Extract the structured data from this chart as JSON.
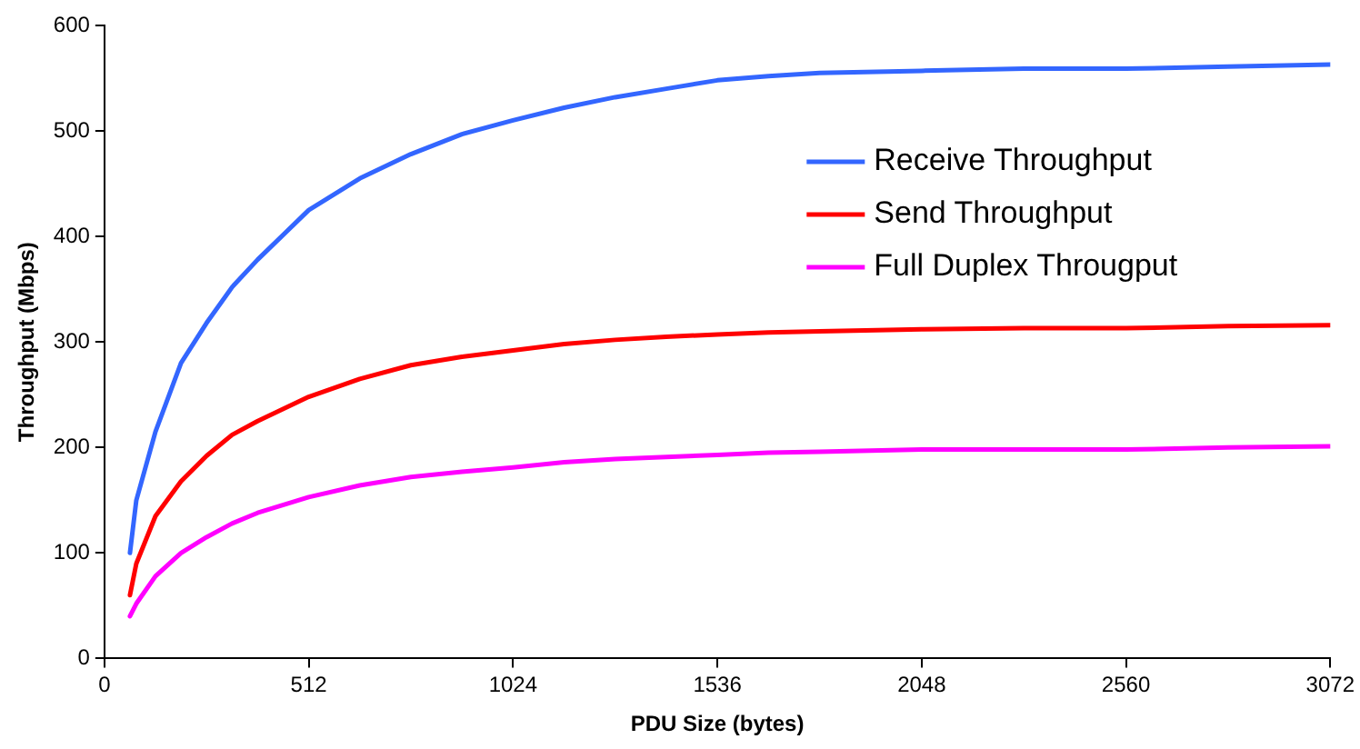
{
  "chart_data": {
    "type": "line",
    "xlabel": "PDU Size (bytes)",
    "ylabel": "Throughput (Mbps)",
    "x": [
      64,
      80,
      128,
      192,
      256,
      320,
      384,
      512,
      640,
      768,
      896,
      1024,
      1152,
      1280,
      1408,
      1536,
      1664,
      1792,
      2048,
      2304,
      2560,
      2816,
      3072
    ],
    "series": [
      {
        "name": "Receive Throughput",
        "color": "#3366ff",
        "values": [
          100,
          150,
          215,
          280,
          318,
          352,
          378,
          425,
          455,
          478,
          497,
          510,
          522,
          532,
          540,
          548,
          552,
          555,
          557,
          559,
          559,
          561,
          563
        ]
      },
      {
        "name": "Send Throughput",
        "color": "#ff0000",
        "values": [
          60,
          90,
          135,
          168,
          192,
          212,
          225,
          248,
          265,
          278,
          286,
          292,
          298,
          302,
          305,
          307,
          309,
          310,
          312,
          313,
          313,
          315,
          316
        ]
      },
      {
        "name": "Full Duplex Througput",
        "color": "#ff00ff",
        "values": [
          40,
          52,
          78,
          100,
          115,
          128,
          138,
          153,
          164,
          172,
          177,
          181,
          186,
          189,
          191,
          193,
          195,
          196,
          198,
          198,
          198,
          200,
          201
        ]
      }
    ],
    "xlim": [
      0,
      3072
    ],
    "xticks": [
      0,
      512,
      1024,
      1536,
      2048,
      2560,
      3072
    ],
    "ylim": [
      0,
      600
    ],
    "yticks": [
      0,
      100,
      200,
      300,
      400,
      500,
      600
    ],
    "grid": false,
    "legend": "right",
    "marker": "none",
    "line_style": "solid"
  }
}
